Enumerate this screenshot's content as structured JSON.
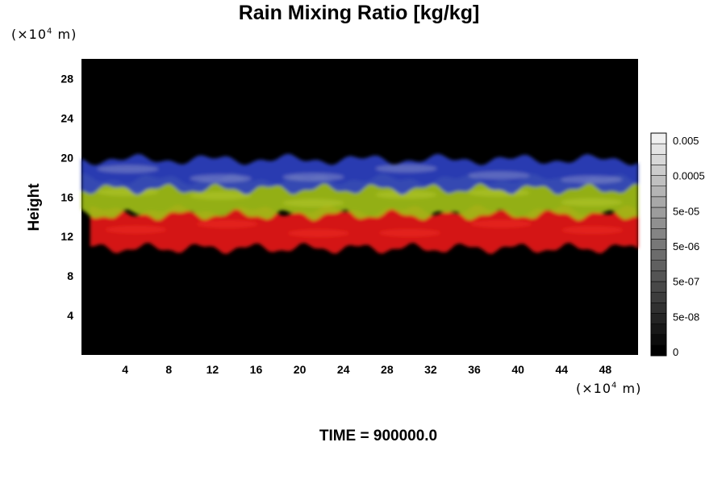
{
  "chart_data": {
    "type": "heatmap",
    "title": "Rain Mixing Ratio [kg/kg]",
    "ylabel": "Height",
    "xlabel": "",
    "x_unit": {
      "pre": "(×10",
      "exp": "4",
      "post": " m)"
    },
    "y_unit": {
      "pre": "(×10",
      "exp": "4",
      "post": " m)"
    },
    "x_ticks": [
      "4",
      "8",
      "12",
      "16",
      "20",
      "24",
      "28",
      "32",
      "36",
      "40",
      "44",
      "48"
    ],
    "y_ticks": [
      "4",
      "8",
      "12",
      "16",
      "20",
      "24",
      "28"
    ],
    "xlim": [
      0,
      51
    ],
    "ylim": [
      0,
      30
    ],
    "background_color": "#000000",
    "colorbar": {
      "labels": [
        "0",
        "5e-08",
        "5e-07",
        "5e-06",
        "5e-05",
        "0.0005",
        "0.005"
      ],
      "levels": 21
    },
    "layers": [
      {
        "name": "",
        "color": "#e61a14",
        "y_range": [
          10.8,
          14.6
        ],
        "x_span": [
          0.8,
          51
        ]
      },
      {
        "name": "",
        "color": "#9fbe14",
        "y_range": [
          14.2,
          17.8
        ],
        "x_span": [
          0,
          51
        ]
      },
      {
        "name": "",
        "color": "#2e40c0",
        "y_range": [
          16.8,
          19.8
        ],
        "x_span": [
          0,
          51
        ]
      }
    ]
  },
  "footer": {
    "time_label": "TIME = 900000.0"
  }
}
